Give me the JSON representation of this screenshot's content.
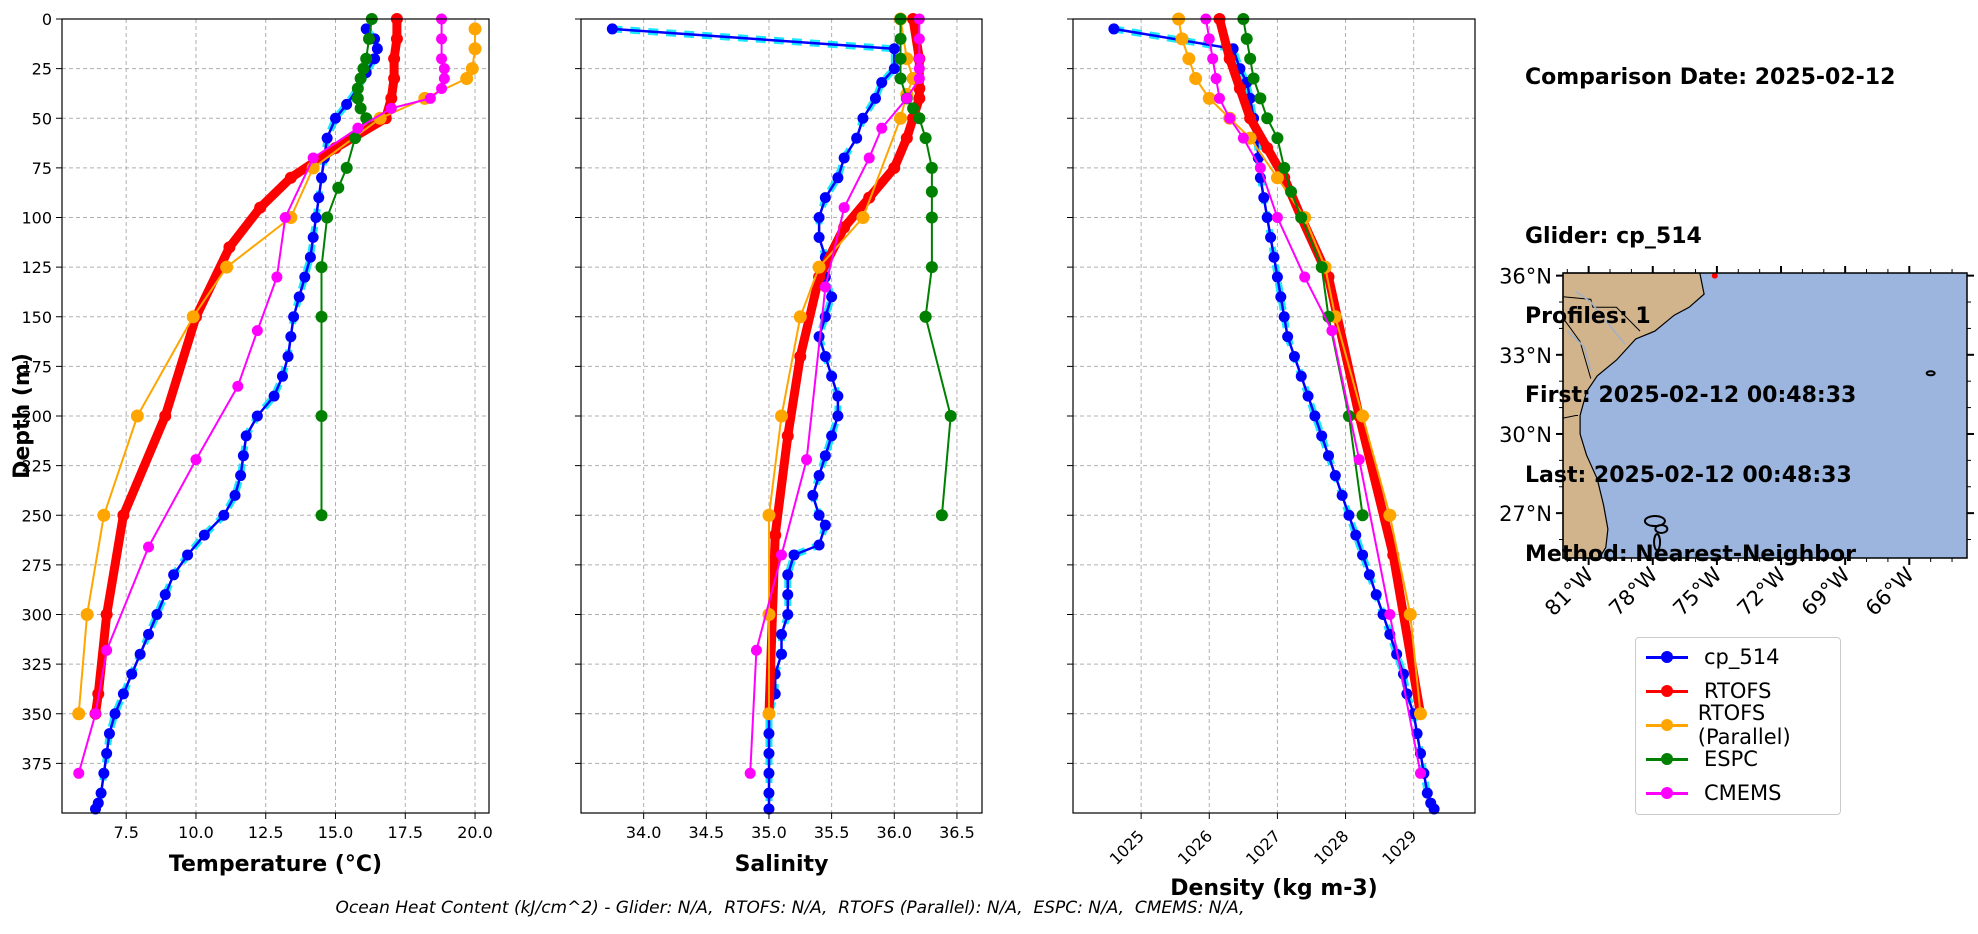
{
  "info": {
    "comparison_date": "Comparison Date: 2025-02-12",
    "glider": "Glider: cp_514",
    "profiles": "Profiles: 1",
    "first": "First: 2025-02-12 00:48:33",
    "last": "Last: 2025-02-12 00:48:33",
    "method": "Method: Nearest-Neighbor"
  },
  "footer": "Ocean Heat Content (kJ/cm^2) - Glider: N/A,  RTOFS: N/A,  RTOFS (Parallel): N/A,  ESPC: N/A,  CMEMS: N/A,",
  "legend": [
    {
      "name": "cp_514",
      "color": "#0000ff"
    },
    {
      "name": "RTOFS",
      "color": "#ff0000"
    },
    {
      "name": "RTOFS (Parallel)",
      "color": "#ffa500"
    },
    {
      "name": "ESPC",
      "color": "#008000"
    },
    {
      "name": "CMEMS",
      "color": "#ff00ff"
    }
  ],
  "map": {
    "lat_ticks": [
      "36°N",
      "33°N",
      "30°N",
      "27°N"
    ],
    "lon_ticks": [
      "81°W",
      "78°W",
      "75°W",
      "72°W",
      "69°W",
      "66°W"
    ],
    "ocean_color": "#9bb5df",
    "land_color": "#d2b48c"
  },
  "chart_data": [
    {
      "type": "line",
      "xlabel": "Temperature (°C)",
      "ylabel": "Depth (m)",
      "xlim": [
        5.2,
        20.5
      ],
      "ylim": [
        400,
        0
      ],
      "xticks": [
        "7.5",
        "10.0",
        "12.5",
        "15.0",
        "17.5",
        "20.0"
      ],
      "yticks": [
        "0",
        "25",
        "50",
        "75",
        "100",
        "125",
        "150",
        "175",
        "200",
        "225",
        "250",
        "275",
        "300",
        "325",
        "350",
        "375"
      ],
      "grid": true,
      "series": [
        {
          "name": "cp_514",
          "color": "#0000ff",
          "x": [
            16.1,
            16.4,
            16.5,
            16.4,
            16.1,
            15.8,
            15.4,
            15.0,
            14.7,
            14.6,
            14.5,
            14.4,
            14.3,
            14.2,
            14.1,
            13.9,
            13.7,
            13.5,
            13.4,
            13.3,
            13.1,
            12.8,
            12.2,
            11.8,
            11.7,
            11.6,
            11.4,
            11.0,
            10.3,
            9.7,
            9.2,
            8.9,
            8.6,
            8.3,
            8.0,
            7.7,
            7.4,
            7.1,
            6.9,
            6.8,
            6.7,
            6.6,
            6.5,
            6.4
          ],
          "y": [
            5,
            10,
            15,
            20,
            27,
            35,
            43,
            50,
            60,
            70,
            80,
            90,
            100,
            110,
            120,
            130,
            140,
            150,
            160,
            170,
            180,
            190,
            200,
            210,
            220,
            230,
            240,
            250,
            260,
            270,
            280,
            290,
            300,
            310,
            320,
            330,
            340,
            350,
            360,
            370,
            380,
            390,
            395,
            398
          ]
        },
        {
          "name": "RTOFS",
          "color": "#ff0000",
          "x": [
            17.2,
            17.2,
            17.1,
            17.1,
            17.0,
            16.8,
            15.0,
            13.4,
            12.3,
            11.2,
            10.0,
            8.9,
            7.4,
            6.8,
            6.5,
            6.4
          ],
          "y": [
            0,
            10,
            20,
            30,
            40,
            50,
            65,
            80,
            95,
            115,
            150,
            200,
            250,
            300,
            340,
            350
          ]
        },
        {
          "name": "RTOFS (Parallel)",
          "color": "#ffa500",
          "x": [
            20.0,
            20.0,
            19.9,
            19.7,
            18.2,
            16.6,
            14.2,
            13.4,
            11.1,
            9.9,
            7.9,
            6.7,
            6.1,
            5.8
          ],
          "y": [
            5,
            15,
            25,
            30,
            40,
            50,
            75,
            100,
            125,
            150,
            200,
            250,
            300,
            350
          ]
        },
        {
          "name": "ESPC",
          "color": "#008000",
          "x": [
            16.3,
            16.2,
            16.1,
            16.0,
            15.9,
            15.8,
            15.8,
            15.9,
            16.1,
            15.7,
            15.4,
            15.1,
            14.7,
            14.5,
            14.5,
            14.5,
            14.5
          ],
          "y": [
            0,
            10,
            20,
            25,
            30,
            35,
            40,
            45,
            50,
            60,
            75,
            85,
            100,
            125,
            150,
            200,
            250
          ]
        },
        {
          "name": "CMEMS",
          "color": "#ff00ff",
          "x": [
            18.8,
            18.8,
            18.8,
            18.9,
            18.9,
            18.8,
            18.4,
            17.0,
            15.8,
            14.2,
            13.2,
            12.9,
            12.2,
            11.5,
            10.0,
            8.3,
            6.8,
            6.4,
            5.8
          ],
          "y": [
            0,
            10,
            20,
            25,
            30,
            35,
            40,
            45,
            55,
            70,
            100,
            130,
            157,
            185,
            222,
            266,
            318,
            350,
            380
          ]
        }
      ]
    },
    {
      "type": "line",
      "xlabel": "Salinity",
      "ylabel": "",
      "xlim": [
        33.5,
        36.7
      ],
      "ylim": [
        400,
        0
      ],
      "xticks": [
        "34.0",
        "34.5",
        "35.0",
        "35.5",
        "36.0",
        "36.5"
      ],
      "grid": true,
      "series": [
        {
          "name": "cp_514",
          "color": "#0000ff",
          "x": [
            33.75,
            36.0,
            36.0,
            35.9,
            35.85,
            35.75,
            35.7,
            35.6,
            35.55,
            35.45,
            35.4,
            35.4,
            35.45,
            35.45,
            35.5,
            35.45,
            35.4,
            35.45,
            35.5,
            35.55,
            35.55,
            35.5,
            35.45,
            35.4,
            35.35,
            35.4,
            35.45,
            35.4,
            35.2,
            35.15,
            35.15,
            35.15,
            35.1,
            35.1,
            35.05,
            35.05,
            35.0,
            35.0,
            35.0,
            35.0,
            35.0,
            35.0
          ],
          "y": [
            5,
            15,
            25,
            32,
            40,
            50,
            60,
            70,
            80,
            90,
            100,
            110,
            120,
            130,
            140,
            150,
            160,
            170,
            180,
            190,
            200,
            210,
            220,
            230,
            240,
            250,
            255,
            265,
            270,
            280,
            290,
            300,
            310,
            320,
            330,
            340,
            350,
            360,
            370,
            380,
            390,
            398
          ]
        },
        {
          "name": "RTOFS",
          "color": "#ff0000",
          "x": [
            36.15,
            36.2,
            36.2,
            36.2,
            36.15,
            36.1,
            36.0,
            35.8,
            35.6,
            35.4,
            35.25,
            35.15,
            35.05,
            35.0
          ],
          "y": [
            0,
            20,
            35,
            40,
            50,
            60,
            75,
            90,
            105,
            130,
            170,
            210,
            260,
            350
          ]
        },
        {
          "name": "RTOFS (Parallel)",
          "color": "#ffa500",
          "x": [
            36.05,
            36.1,
            36.15,
            36.1,
            36.05,
            35.75,
            35.4,
            35.25,
            35.1,
            35.0,
            35.0,
            35.0
          ],
          "y": [
            0,
            20,
            30,
            38,
            50,
            100,
            125,
            150,
            200,
            250,
            300,
            350
          ]
        },
        {
          "name": "ESPC",
          "color": "#008000",
          "x": [
            36.05,
            36.05,
            36.05,
            36.05,
            36.1,
            36.15,
            36.2,
            36.25,
            36.3,
            36.3,
            36.3,
            36.3,
            36.25,
            36.25,
            36.45,
            36.38
          ],
          "y": [
            0,
            10,
            20,
            30,
            40,
            45,
            50,
            60,
            75,
            87,
            100,
            125,
            150,
            150,
            200,
            250
          ]
        },
        {
          "name": "CMEMS",
          "color": "#ff00ff",
          "x": [
            36.2,
            36.2,
            36.2,
            36.2,
            36.2,
            36.1,
            35.9,
            35.8,
            35.6,
            35.45,
            35.3,
            35.1,
            34.9,
            34.85
          ],
          "y": [
            0,
            10,
            20,
            25,
            30,
            40,
            55,
            70,
            95,
            135,
            222,
            270,
            318,
            380
          ]
        }
      ]
    },
    {
      "type": "line",
      "xlabel": "Density (kg m-3)",
      "ylabel": "",
      "xlim": [
        1024.0,
        1029.9
      ],
      "ylim": [
        400,
        0
      ],
      "xticks": [
        "1025",
        "1026",
        "1027",
        "1028",
        "1029"
      ],
      "grid": true,
      "series": [
        {
          "name": "cp_514",
          "color": "#0000ff",
          "x": [
            1024.6,
            1026.35,
            1026.45,
            1026.55,
            1026.6,
            1026.65,
            1026.7,
            1026.72,
            1026.75,
            1026.8,
            1026.85,
            1026.9,
            1026.95,
            1027.0,
            1027.05,
            1027.1,
            1027.15,
            1027.25,
            1027.35,
            1027.45,
            1027.55,
            1027.65,
            1027.75,
            1027.85,
            1027.95,
            1028.05,
            1028.15,
            1028.25,
            1028.35,
            1028.45,
            1028.55,
            1028.65,
            1028.75,
            1028.85,
            1028.9,
            1029.0,
            1029.05,
            1029.1,
            1029.15,
            1029.2,
            1029.25,
            1029.3
          ],
          "y": [
            5,
            15,
            25,
            32,
            40,
            50,
            60,
            70,
            80,
            90,
            100,
            110,
            120,
            130,
            140,
            150,
            160,
            170,
            180,
            190,
            200,
            210,
            220,
            230,
            240,
            250,
            260,
            270,
            280,
            290,
            300,
            310,
            320,
            330,
            340,
            350,
            360,
            370,
            380,
            390,
            395,
            398
          ]
        },
        {
          "name": "RTOFS",
          "color": "#ff0000",
          "x": [
            1026.15,
            1026.3,
            1026.45,
            1026.6,
            1026.85,
            1027.1,
            1027.35,
            1027.75,
            1028.2,
            1028.7,
            1029.1
          ],
          "y": [
            0,
            20,
            35,
            50,
            65,
            80,
            100,
            130,
            200,
            270,
            350
          ]
        },
        {
          "name": "RTOFS (Parallel)",
          "color": "#ffa500",
          "x": [
            1025.55,
            1025.6,
            1025.7,
            1025.8,
            1026.0,
            1026.3,
            1026.6,
            1027.0,
            1027.4,
            1027.7,
            1027.85,
            1028.25,
            1028.65,
            1028.95,
            1029.1
          ],
          "y": [
            0,
            10,
            20,
            30,
            40,
            50,
            60,
            80,
            100,
            125,
            150,
            200,
            250,
            300,
            350
          ]
        },
        {
          "name": "ESPC",
          "color": "#008000",
          "x": [
            1026.5,
            1026.55,
            1026.6,
            1026.65,
            1026.75,
            1026.85,
            1027.0,
            1027.1,
            1027.2,
            1027.35,
            1027.65,
            1027.75,
            1028.05,
            1028.25
          ],
          "y": [
            0,
            10,
            20,
            30,
            40,
            50,
            60,
            75,
            87,
            100,
            125,
            150,
            200,
            250
          ]
        },
        {
          "name": "CMEMS",
          "color": "#ff00ff",
          "x": [
            1025.95,
            1026.0,
            1026.05,
            1026.1,
            1026.15,
            1026.3,
            1026.5,
            1026.75,
            1027.0,
            1027.4,
            1027.8,
            1028.2,
            1028.65,
            1029.1
          ],
          "y": [
            0,
            10,
            20,
            30,
            40,
            50,
            60,
            75,
            100,
            130,
            157,
            222,
            300,
            380
          ]
        }
      ]
    }
  ]
}
